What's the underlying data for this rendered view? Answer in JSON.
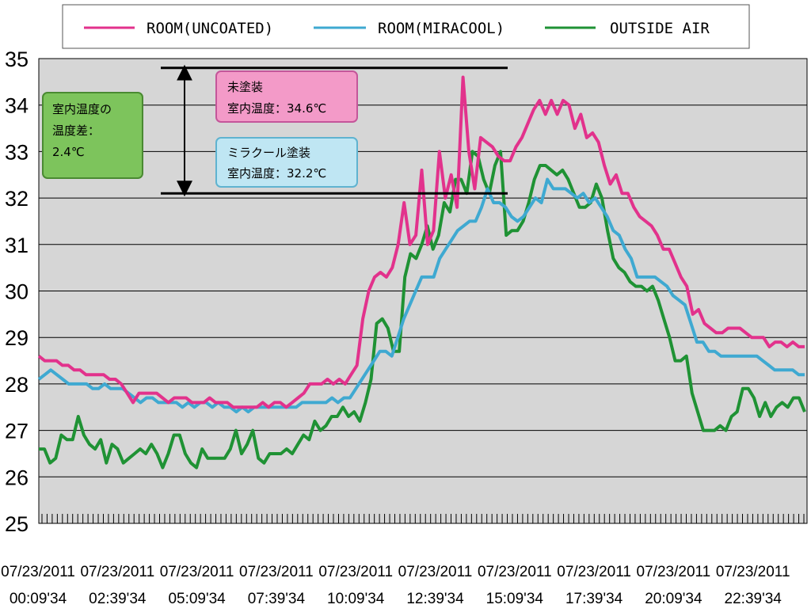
{
  "chart_data": {
    "type": "line",
    "title": "",
    "xlabel": "",
    "ylabel": "",
    "ylim": [
      25,
      35
    ],
    "yticks": [
      25,
      26,
      27,
      28,
      29,
      30,
      31,
      32,
      33,
      34,
      35
    ],
    "grid": true,
    "legend_position": "top",
    "x_tick_labels": [
      {
        "date": "07/23/2011",
        "time": "00:09'34"
      },
      {
        "date": "07/23/2011",
        "time": "02:39'34"
      },
      {
        "date": "07/23/2011",
        "time": "05:09'34"
      },
      {
        "date": "07/23/2011",
        "time": "07:39'34"
      },
      {
        "date": "07/23/2011",
        "time": "10:09'34"
      },
      {
        "date": "07/23/2011",
        "time": "12:39'34"
      },
      {
        "date": "07/23/2011",
        "time": "15:09'34"
      },
      {
        "date": "07/23/2011",
        "time": "17:39'34"
      },
      {
        "date": "07/23/2011",
        "time": "20:09'34"
      },
      {
        "date": "07/23/2011",
        "time": "22:39'34"
      }
    ],
    "series": [
      {
        "name": "ROOM(UNCOATED)",
        "color": "#e2328c",
        "values": [
          28.6,
          28.5,
          28.5,
          28.5,
          28.4,
          28.4,
          28.3,
          28.3,
          28.2,
          28.2,
          28.2,
          28.2,
          28.1,
          28.1,
          28.0,
          27.8,
          27.6,
          27.8,
          27.8,
          27.8,
          27.8,
          27.7,
          27.6,
          27.7,
          27.7,
          27.7,
          27.6,
          27.6,
          27.6,
          27.7,
          27.6,
          27.6,
          27.6,
          27.5,
          27.5,
          27.5,
          27.5,
          27.5,
          27.6,
          27.5,
          27.6,
          27.6,
          27.5,
          27.6,
          27.7,
          27.8,
          28.0,
          28.0,
          28.0,
          28.1,
          28.0,
          28.1,
          28.0,
          28.2,
          28.4,
          29.4,
          30.0,
          30.3,
          30.4,
          30.3,
          30.5,
          31.0,
          31.9,
          31.0,
          31.2,
          32.6,
          31.0,
          31.3,
          33.0,
          32.0,
          32.5,
          31.8,
          34.6,
          33.0,
          32.2,
          33.3,
          33.2,
          33.1,
          32.9,
          32.8,
          32.8,
          33.1,
          33.3,
          33.6,
          33.9,
          34.1,
          33.8,
          34.1,
          33.8,
          34.1,
          34.0,
          33.5,
          33.8,
          33.3,
          33.4,
          33.2,
          32.7,
          32.3,
          32.5,
          32.1,
          32.1,
          31.8,
          31.6,
          31.5,
          31.4,
          31.2,
          30.9,
          30.9,
          30.6,
          30.3,
          30.1,
          29.5,
          29.6,
          29.3,
          29.2,
          29.1,
          29.1,
          29.2,
          29.2,
          29.2,
          29.1,
          29.0,
          29.0,
          29.0,
          28.8,
          28.9,
          28.9,
          28.8,
          28.9,
          28.8,
          28.8
        ]
      },
      {
        "name": "ROOM(MIRACOOL)",
        "color": "#3fa9d1",
        "values": [
          28.1,
          28.2,
          28.3,
          28.2,
          28.1,
          28.0,
          28.0,
          28.0,
          28.0,
          27.9,
          27.9,
          28.0,
          27.9,
          27.9,
          27.9,
          27.8,
          27.7,
          27.6,
          27.7,
          27.7,
          27.6,
          27.6,
          27.6,
          27.6,
          27.5,
          27.6,
          27.5,
          27.6,
          27.6,
          27.5,
          27.6,
          27.5,
          27.5,
          27.4,
          27.5,
          27.4,
          27.5,
          27.5,
          27.5,
          27.5,
          27.5,
          27.5,
          27.5,
          27.5,
          27.6,
          27.6,
          27.6,
          27.6,
          27.6,
          27.7,
          27.6,
          27.7,
          27.7,
          27.9,
          28.1,
          28.3,
          28.5,
          28.7,
          28.7,
          28.6,
          29.0,
          29.4,
          29.7,
          30.0,
          30.3,
          30.3,
          30.3,
          30.7,
          30.9,
          31.1,
          31.3,
          31.4,
          31.5,
          31.5,
          31.8,
          32.2,
          31.9,
          31.9,
          31.8,
          31.6,
          31.5,
          31.6,
          31.8,
          32.0,
          31.9,
          32.4,
          32.2,
          32.2,
          32.2,
          32.1,
          32.0,
          32.1,
          31.9,
          32.0,
          31.8,
          31.6,
          31.3,
          31.2,
          30.9,
          30.7,
          30.3,
          30.3,
          30.3,
          30.3,
          30.2,
          30.1,
          29.9,
          29.8,
          29.7,
          29.3,
          28.9,
          28.9,
          28.7,
          28.7,
          28.6,
          28.6,
          28.6,
          28.6,
          28.6,
          28.6,
          28.6,
          28.5,
          28.4,
          28.3,
          28.3,
          28.3,
          28.3,
          28.2,
          28.2
        ]
      },
      {
        "name": "OUTSIDE AIR",
        "color": "#1f9234",
        "values": [
          26.6,
          26.6,
          26.3,
          26.4,
          26.9,
          26.8,
          26.8,
          27.3,
          26.9,
          26.7,
          26.6,
          26.8,
          26.3,
          26.7,
          26.6,
          26.3,
          26.4,
          26.5,
          26.6,
          26.5,
          26.7,
          26.5,
          26.2,
          26.5,
          26.9,
          26.9,
          26.5,
          26.3,
          26.2,
          26.6,
          26.4,
          26.4,
          26.4,
          26.4,
          26.6,
          27.0,
          26.5,
          26.7,
          27.0,
          26.4,
          26.3,
          26.5,
          26.5,
          26.5,
          26.6,
          26.5,
          26.7,
          26.9,
          26.8,
          27.2,
          27.0,
          27.1,
          27.3,
          27.3,
          27.5,
          27.3,
          27.4,
          27.2,
          27.6,
          28.1,
          29.3,
          29.4,
          29.2,
          28.7,
          28.7,
          30.3,
          30.8,
          30.7,
          31.0,
          31.4,
          30.9,
          31.2,
          31.9,
          31.7,
          32.4,
          32.4,
          32.1,
          33.0,
          32.9,
          32.4,
          32.1,
          32.7,
          33.0,
          31.2,
          31.3,
          31.3,
          31.5,
          31.9,
          32.4,
          32.7,
          32.7,
          32.6,
          32.5,
          32.6,
          32.4,
          32.1,
          31.8,
          31.8,
          31.9,
          32.3,
          32.0,
          31.3,
          30.7,
          30.5,
          30.4,
          30.2,
          30.1,
          30.1,
          30.0,
          30.1,
          29.8,
          29.4,
          29.0,
          28.5,
          28.5,
          28.6,
          27.8,
          27.4,
          27.0,
          27.0,
          27.0,
          27.1,
          27.0,
          27.3,
          27.4,
          27.9,
          27.9,
          27.7,
          27.3,
          27.6,
          27.3,
          27.5,
          27.6,
          27.5,
          27.7,
          27.7,
          27.4
        ]
      }
    ],
    "annotations": {
      "uncoated_box": {
        "line1": "未塗装",
        "line2": "室内温度：34.6℃",
        "color": "#f39ac8"
      },
      "miracool_box": {
        "line1": "ミラクール塗装",
        "line2": "室内温度：32.2℃",
        "color": "#bfe6f3"
      },
      "difference_box": {
        "line1": "室内温度の",
        "line2": "温度差：",
        "line3": "2.4℃",
        "color": "#7dc45c"
      },
      "upper_value": 34.8,
      "lower_value": 32.1
    }
  }
}
